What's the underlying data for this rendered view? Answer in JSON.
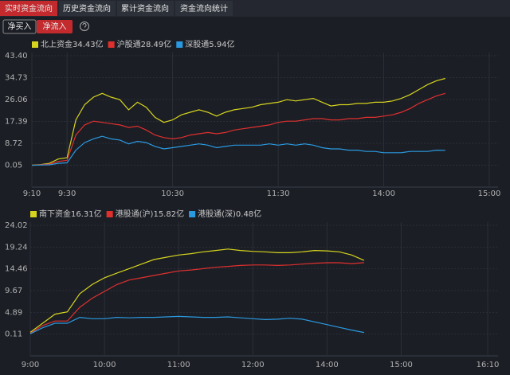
{
  "tabs": [
    "实时资金流向",
    "历史资金流向",
    "累计资金流向",
    "资金流向统计"
  ],
  "buttons": [
    "净买入",
    "净流入"
  ],
  "chart_data": [
    {
      "type": "line",
      "x": [
        0,
        5,
        10,
        15,
        20,
        25,
        30,
        35,
        40,
        45,
        50,
        55,
        60,
        65,
        70,
        75,
        80,
        85,
        90,
        95,
        100,
        105,
        110,
        115,
        120,
        125,
        130,
        135,
        140,
        145,
        150,
        155,
        160,
        165,
        170,
        175,
        180,
        185,
        190,
        195,
        200,
        205,
        210,
        215,
        220,
        225,
        230,
        235
      ],
      "xlim": [
        0,
        260
      ],
      "xticks": [
        {
          "value": 0,
          "label": "9:10"
        },
        {
          "value": 20,
          "label": "9:30"
        },
        {
          "value": 80,
          "label": "10:30"
        },
        {
          "value": 140,
          "label": "11:30"
        },
        {
          "value": 200,
          "label": "14:00"
        },
        {
          "value": 260,
          "label": "15:00"
        }
      ],
      "ylim": [
        -8.62,
        43.4
      ],
      "yticks": [
        {
          "value": 0.05,
          "label": "0.05"
        },
        {
          "value": 8.72,
          "label": "8.72"
        },
        {
          "value": 17.39,
          "label": "17.39"
        },
        {
          "value": 26.06,
          "label": "26.06"
        },
        {
          "value": 34.73,
          "label": "34.73"
        },
        {
          "value": 43.4,
          "label": "43.40"
        }
      ],
      "grid": true,
      "series": [
        {
          "name": "北上资金",
          "color": "#d6d41e",
          "value_label": "34.43亿",
          "values": [
            0.05,
            0.3,
            0.8,
            2.5,
            3,
            18,
            24,
            27,
            28.5,
            27,
            26,
            22,
            25,
            23,
            19,
            17,
            18,
            20,
            21,
            22,
            21,
            19.5,
            21,
            22,
            22.5,
            23,
            24,
            24.5,
            25,
            26,
            25.5,
            26,
            26.5,
            25,
            23.5,
            24,
            24,
            24.5,
            24.5,
            25,
            25,
            25.5,
            26.5,
            28,
            30,
            32,
            33.5,
            34.43
          ]
        },
        {
          "name": "沪股通",
          "color": "#e0302e",
          "value_label": "28.49亿",
          "values": [
            0,
            0.2,
            0.5,
            1.5,
            2,
            12,
            16,
            17.5,
            17,
            16.5,
            16,
            15,
            15.5,
            14,
            12,
            11,
            10.5,
            11,
            12,
            12.5,
            13,
            12.5,
            13,
            14,
            14.5,
            15,
            15.5,
            16,
            17,
            17.5,
            17.5,
            18,
            18.5,
            18.5,
            18,
            18,
            18.5,
            18.5,
            19,
            19,
            19.5,
            20,
            21,
            22.5,
            24.5,
            26,
            27.5,
            28.49
          ]
        },
        {
          "name": "深股通",
          "color": "#2a9ae0",
          "value_label": "5.94亿",
          "values": [
            0,
            0.1,
            0.2,
            0.8,
            1,
            6,
            9,
            10.5,
            11.5,
            10.5,
            10,
            8.5,
            9.5,
            9,
            7.5,
            6.5,
            7,
            7.5,
            8,
            8.5,
            8,
            7,
            7.5,
            8,
            8,
            8,
            8,
            8.5,
            8,
            8.5,
            8,
            8.5,
            8,
            7,
            6.5,
            6.5,
            6,
            6,
            5.5,
            5.5,
            5,
            5,
            5,
            5.5,
            5.5,
            5.5,
            6,
            5.94
          ]
        }
      ]
    },
    {
      "type": "line",
      "x": [
        0,
        10,
        20,
        30,
        40,
        50,
        60,
        70,
        80,
        90,
        100,
        110,
        120,
        130,
        140,
        150,
        160,
        170,
        180,
        190,
        200,
        210,
        220,
        230,
        240,
        250,
        260,
        270
      ],
      "xlim": [
        0,
        370
      ],
      "xticks": [
        {
          "value": 0,
          "label": "9:00"
        },
        {
          "value": 60,
          "label": "10:00"
        },
        {
          "value": 120,
          "label": "11:00"
        },
        {
          "value": 180,
          "label": "12:00"
        },
        {
          "value": 240,
          "label": "14:00"
        },
        {
          "value": 300,
          "label": "15:00"
        },
        {
          "value": 370,
          "label": "16:10"
        }
      ],
      "ylim": [
        -4.67,
        24.02
      ],
      "yticks": [
        {
          "value": 0.11,
          "label": "0.11"
        },
        {
          "value": 4.89,
          "label": "4.89"
        },
        {
          "value": 9.67,
          "label": "9.67"
        },
        {
          "value": 14.46,
          "label": "14.46"
        },
        {
          "value": 19.24,
          "label": "19.24"
        },
        {
          "value": 24.02,
          "label": "24.02"
        }
      ],
      "grid": true,
      "series": [
        {
          "name": "南下资金",
          "color": "#d6d41e",
          "value_label": "16.31亿",
          "values": [
            0.5,
            2.5,
            4.5,
            5,
            9,
            11,
            12.5,
            13.5,
            14.5,
            15.5,
            16.5,
            17,
            17.5,
            17.8,
            18.2,
            18.5,
            18.8,
            18.5,
            18.3,
            18.2,
            18,
            18,
            18.2,
            18.5,
            18.4,
            18.2,
            17.5,
            16.31
          ]
        },
        {
          "name": "港股通(沪)",
          "color": "#e0302e",
          "value_label": "15.82亿",
          "values": [
            0.3,
            2,
            3,
            3,
            6,
            8,
            9.5,
            11,
            12,
            12.5,
            13,
            13.5,
            14,
            14.2,
            14.5,
            14.8,
            15,
            15.2,
            15.3,
            15.3,
            15.2,
            15.3,
            15.5,
            15.7,
            15.8,
            15.8,
            15.6,
            15.82
          ]
        },
        {
          "name": "港股通(深)",
          "color": "#2a9ae0",
          "value_label": "0.48亿",
          "values": [
            0.2,
            1.5,
            2.5,
            2.5,
            3.8,
            3.5,
            3.5,
            3.8,
            3.7,
            3.8,
            3.8,
            3.9,
            4,
            3.9,
            3.8,
            3.8,
            3.9,
            3.7,
            3.5,
            3.3,
            3.4,
            3.6,
            3.4,
            2.8,
            2.2,
            1.6,
            1,
            0.48
          ]
        }
      ]
    }
  ]
}
